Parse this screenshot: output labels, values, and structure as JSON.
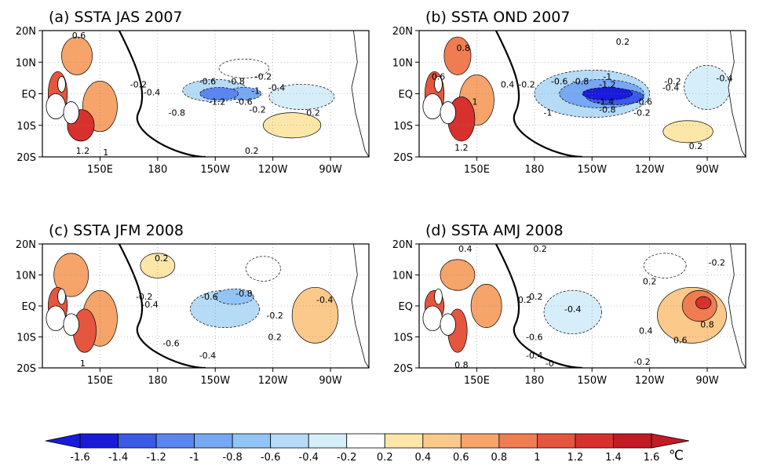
{
  "chart_data": [
    {
      "type": "heatmap",
      "title": "(a) SSTA JAS 2007",
      "lon_ticks": [
        "150E",
        "180",
        "150W",
        "120W",
        "90W"
      ],
      "lat_ticks": [
        "20N",
        "10N",
        "EQ",
        "10S",
        "20S"
      ],
      "lon_range": [
        120,
        290
      ],
      "lat_range": [
        -20,
        20
      ],
      "features": [
        {
          "lon": 140,
          "lat": -10,
          "value": 1.2,
          "w": 14,
          "h": 10
        },
        {
          "lon": 128,
          "lat": 0,
          "value": 1.0,
          "w": 10,
          "h": 14
        },
        {
          "lon": 138,
          "lat": 12,
          "value": 0.6,
          "w": 16,
          "h": 12
        },
        {
          "lon": 150,
          "lat": -4,
          "value": 0.6,
          "w": 18,
          "h": 16
        },
        {
          "lon": 212,
          "lat": 0,
          "value": -1.2,
          "w": 20,
          "h": 4
        },
        {
          "lon": 225,
          "lat": 0,
          "value": -1.0,
          "w": 18,
          "h": 4
        },
        {
          "lon": 210,
          "lat": 1,
          "value": -0.6,
          "w": 34,
          "h": 7
        },
        {
          "lon": 255,
          "lat": -1,
          "value": -0.4,
          "w": 34,
          "h": 8
        },
        {
          "lon": 225,
          "lat": 8,
          "value": -0.2,
          "w": 26,
          "h": 6
        },
        {
          "lon": 250,
          "lat": -10,
          "value": 0.2,
          "w": 30,
          "h": 8
        }
      ],
      "contour_labels": [
        {
          "text": "0.6",
          "lon": 139,
          "lat": 18.5
        },
        {
          "text": "-0.6",
          "lon": 206,
          "lat": 4
        },
        {
          "text": "-0.8",
          "lon": 221,
          "lat": 4
        },
        {
          "text": "-0.2",
          "lon": 235,
          "lat": 5.5
        },
        {
          "text": "-0.4",
          "lon": 242,
          "lat": 2
        },
        {
          "text": "-0.2",
          "lon": 170,
          "lat": 3
        },
        {
          "text": "-0.4",
          "lon": 177,
          "lat": 0.5
        },
        {
          "text": "-1.2",
          "lon": 211,
          "lat": -2.5
        },
        {
          "text": "-0.6",
          "lon": 225,
          "lat": -2.5
        },
        {
          "text": "-1",
          "lon": 231,
          "lat": 1
        },
        {
          "text": "-0.8",
          "lon": 190,
          "lat": -6
        },
        {
          "text": "-0.2",
          "lon": 232,
          "lat": -5
        },
        {
          "text": "0.2",
          "lon": 261,
          "lat": -6
        },
        {
          "text": "0.2",
          "lon": 229,
          "lat": -18
        },
        {
          "text": "1.2",
          "lon": 141,
          "lat": -18
        },
        {
          "text": "1",
          "lon": 153,
          "lat": -18.5
        }
      ]
    },
    {
      "type": "heatmap",
      "title": "(b) SSTA OND 2007",
      "lon_ticks": [
        "150E",
        "180",
        "150W",
        "120W",
        "90W"
      ],
      "lat_ticks": [
        "20N",
        "10N",
        "EQ",
        "10S",
        "20S"
      ],
      "lon_range": [
        120,
        290
      ],
      "lat_range": [
        -20,
        20
      ],
      "features": [
        {
          "lon": 142,
          "lat": -8,
          "value": 1.2,
          "w": 14,
          "h": 14
        },
        {
          "lon": 128,
          "lat": 0,
          "value": 1.0,
          "w": 10,
          "h": 14
        },
        {
          "lon": 140,
          "lat": 12,
          "value": 0.8,
          "w": 14,
          "h": 12
        },
        {
          "lon": 150,
          "lat": -2,
          "value": 0.6,
          "w": 18,
          "h": 16
        },
        {
          "lon": 218,
          "lat": 0,
          "value": -1.6,
          "w": 26,
          "h": 4
        },
        {
          "lon": 222,
          "lat": -1,
          "value": -1.4,
          "w": 30,
          "h": 5
        },
        {
          "lon": 215,
          "lat": 0,
          "value": -1.0,
          "w": 44,
          "h": 9
        },
        {
          "lon": 210,
          "lat": 0,
          "value": -0.6,
          "w": 60,
          "h": 15
        },
        {
          "lon": 270,
          "lat": 2,
          "value": -0.4,
          "w": 24,
          "h": 14
        },
        {
          "lon": 260,
          "lat": -12,
          "value": 0.2,
          "w": 26,
          "h": 7
        }
      ],
      "contour_labels": [
        {
          "text": "0.2",
          "lon": 226,
          "lat": 16.5
        },
        {
          "text": "0.8",
          "lon": 143,
          "lat": 14.5
        },
        {
          "text": "0.6",
          "lon": 130,
          "lat": 5.5
        },
        {
          "text": "-0.2",
          "lon": 176,
          "lat": 3
        },
        {
          "text": "0.4",
          "lon": 166,
          "lat": 3
        },
        {
          "text": "-0.6",
          "lon": 193,
          "lat": 4
        },
        {
          "text": "-0.8",
          "lon": 204,
          "lat": 4
        },
        {
          "text": "-1",
          "lon": 218,
          "lat": 5.5
        },
        {
          "text": "-1.2",
          "lon": 218,
          "lat": 3
        },
        {
          "text": "-0.2",
          "lon": 252,
          "lat": 4
        },
        {
          "text": "-0.4",
          "lon": 251,
          "lat": 2
        },
        {
          "text": "-0.4",
          "lon": 279,
          "lat": 5
        },
        {
          "text": "1",
          "lon": 149,
          "lat": -2.5
        },
        {
          "text": "-1.4",
          "lon": 217,
          "lat": -2.5
        },
        {
          "text": "-1",
          "lon": 187,
          "lat": -6
        },
        {
          "text": "-0.8",
          "lon": 218,
          "lat": -5
        },
        {
          "text": "-0.6",
          "lon": 237,
          "lat": -2.5
        },
        {
          "text": "-0.2",
          "lon": 236,
          "lat": -6
        },
        {
          "text": "0.2",
          "lon": 264,
          "lat": -16.5
        },
        {
          "text": "1.2",
          "lon": 142,
          "lat": -17
        }
      ]
    },
    {
      "type": "heatmap",
      "title": "(c) SSTA JFM 2008",
      "lon_ticks": [
        "150E",
        "180",
        "150W",
        "120W",
        "90W"
      ],
      "lat_ticks": [
        "20N",
        "10N",
        "EQ",
        "10S",
        "20S"
      ],
      "lon_range": [
        120,
        290
      ],
      "lat_range": [
        -20,
        20
      ],
      "features": [
        {
          "lon": 142,
          "lat": -8,
          "value": 1.0,
          "w": 12,
          "h": 14
        },
        {
          "lon": 128,
          "lat": 0,
          "value": 1.0,
          "w": 10,
          "h": 12
        },
        {
          "lon": 135,
          "lat": 10,
          "value": 0.6,
          "w": 18,
          "h": 14
        },
        {
          "lon": 150,
          "lat": -4,
          "value": 0.6,
          "w": 18,
          "h": 18
        },
        {
          "lon": 215,
          "lat": -1,
          "value": -0.6,
          "w": 36,
          "h": 12
        },
        {
          "lon": 220,
          "lat": 3,
          "value": -0.8,
          "w": 20,
          "h": 5
        },
        {
          "lon": 262,
          "lat": -3,
          "value": 0.4,
          "w": 24,
          "h": 18
        },
        {
          "lon": 235,
          "lat": 12,
          "value": -0.2,
          "w": 18,
          "h": 8
        },
        {
          "lon": 180,
          "lat": 13,
          "value": 0.2,
          "w": 18,
          "h": 8
        }
      ],
      "contour_labels": [
        {
          "text": "0.2",
          "lon": 182,
          "lat": 15.5
        },
        {
          "text": "-0.2",
          "lon": 173,
          "lat": 3
        },
        {
          "text": "-0.4",
          "lon": 176,
          "lat": 0.5
        },
        {
          "text": "-0.6",
          "lon": 207,
          "lat": 3
        },
        {
          "text": "-0.8",
          "lon": 225,
          "lat": 4
        },
        {
          "text": "-0.4",
          "lon": 267,
          "lat": 2
        },
        {
          "text": "-0.2",
          "lon": 241,
          "lat": -3
        },
        {
          "text": "0.2",
          "lon": 241,
          "lat": -10
        },
        {
          "text": "-0.6",
          "lon": 187,
          "lat": -12
        },
        {
          "text": "-0.4",
          "lon": 206,
          "lat": -16
        },
        {
          "text": "1",
          "lon": 141,
          "lat": -18.5
        }
      ]
    },
    {
      "type": "heatmap",
      "title": "(d) SSTA AMJ 2008",
      "lon_ticks": [
        "150E",
        "180",
        "150W",
        "120W",
        "90W"
      ],
      "lat_ticks": [
        "20N",
        "10N",
        "EQ",
        "10S",
        "20S"
      ],
      "lon_range": [
        120,
        290
      ],
      "lat_range": [
        -20,
        20
      ],
      "features": [
        {
          "lon": 140,
          "lat": -8,
          "value": 1.0,
          "w": 10,
          "h": 14
        },
        {
          "lon": 128,
          "lat": 0,
          "value": 1.0,
          "w": 10,
          "h": 10
        },
        {
          "lon": 140,
          "lat": 10,
          "value": 0.6,
          "w": 18,
          "h": 10
        },
        {
          "lon": 155,
          "lat": 0,
          "value": 0.6,
          "w": 16,
          "h": 14
        },
        {
          "lon": 266,
          "lat": 0,
          "value": 0.8,
          "w": 18,
          "h": 10
        },
        {
          "lon": 268,
          "lat": 1,
          "value": 1.2,
          "w": 8,
          "h": 4
        },
        {
          "lon": 262,
          "lat": -3,
          "value": 0.4,
          "w": 36,
          "h": 18
        },
        {
          "lon": 200,
          "lat": -2,
          "value": -0.4,
          "w": 30,
          "h": 14
        },
        {
          "lon": 248,
          "lat": 13,
          "value": -0.2,
          "w": 22,
          "h": 8
        }
      ],
      "contour_labels": [
        {
          "text": "0.4",
          "lon": 144,
          "lat": 18.5
        },
        {
          "text": "0.2",
          "lon": 183,
          "lat": 18.5
        },
        {
          "text": "-0.2",
          "lon": 275,
          "lat": 14
        },
        {
          "text": "0.2",
          "lon": 240,
          "lat": 8
        },
        {
          "text": "0.2",
          "lon": 175,
          "lat": 2
        },
        {
          "text": "-0.2",
          "lon": 180,
          "lat": 3
        },
        {
          "text": "-0.4",
          "lon": 200,
          "lat": -1
        },
        {
          "text": "-0.6",
          "lon": 180,
          "lat": -10
        },
        {
          "text": "-0.4",
          "lon": 180,
          "lat": -16
        },
        {
          "text": "-0",
          "lon": 188,
          "lat": -18.5
        },
        {
          "text": "-0.2",
          "lon": 236,
          "lat": -18
        },
        {
          "text": "0.8",
          "lon": 270,
          "lat": -6
        },
        {
          "text": "0.6",
          "lon": 256,
          "lat": -11
        },
        {
          "text": "0.4",
          "lon": 238,
          "lat": -8
        },
        {
          "text": "0.8",
          "lon": 142,
          "lat": -19
        }
      ]
    }
  ],
  "colorbar": {
    "tick_labels": [
      "-1.6",
      "-1.4",
      "-1.2",
      "-1",
      "-0.8",
      "-0.6",
      "-0.4",
      "-0.2",
      "0.2",
      "0.4",
      "0.6",
      "0.8",
      "1",
      "1.2",
      "1.4",
      "1.6"
    ],
    "unit": "℃",
    "colors": [
      "#1a1adb",
      "#3b5ae8",
      "#5a86f0",
      "#76a8f3",
      "#93c4f6",
      "#b5dbf7",
      "#d6eefa",
      "#ffffff",
      "#fde7a8",
      "#fbc98a",
      "#f6a46a",
      "#f07d52",
      "#e6553e",
      "#d8312d",
      "#c41a24"
    ]
  }
}
